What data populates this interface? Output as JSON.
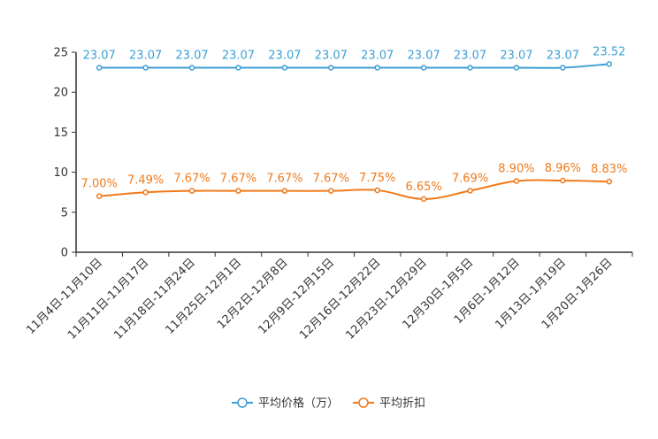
{
  "chart_data": {
    "type": "line",
    "title": "",
    "xlabel": "",
    "ylabel": "",
    "ylim": [
      0,
      25
    ],
    "yticks": [
      0,
      5,
      10,
      15,
      20,
      25
    ],
    "grid": false,
    "legend_position": "bottom",
    "categories": [
      "11月4日-11月10日",
      "11月11日-11月17日",
      "11月18日-11月24日",
      "11月25日-12月1日",
      "12月2日-12月8日",
      "12月9日-12月15日",
      "12月16日-12月22日",
      "12月23日-12月29日",
      "12月30日-1月5日",
      "1月6日-1月12日",
      "1月13日-1月19日",
      "1月20日-1月26日"
    ],
    "series": [
      {
        "name": "平均价格（万）",
        "color": "#3d9fd5",
        "values": [
          23.07,
          23.07,
          23.07,
          23.07,
          23.07,
          23.07,
          23.07,
          23.07,
          23.07,
          23.07,
          23.07,
          23.52
        ],
        "labels": [
          "23.07",
          "23.07",
          "23.07",
          "23.07",
          "23.07",
          "23.07",
          "23.07",
          "23.07",
          "23.07",
          "23.07",
          "23.07",
          "23.52"
        ]
      },
      {
        "name": "平均折扣",
        "color": "#f07a1a",
        "values": [
          7.0,
          7.49,
          7.67,
          7.67,
          7.67,
          7.67,
          7.75,
          6.65,
          7.69,
          8.9,
          8.96,
          8.83
        ],
        "labels": [
          "7.00%",
          "7.49%",
          "7.67%",
          "7.67%",
          "7.67%",
          "7.67%",
          "7.75%",
          "6.65%",
          "7.69%",
          "8.90%",
          "8.96%",
          "8.83%"
        ]
      }
    ]
  }
}
